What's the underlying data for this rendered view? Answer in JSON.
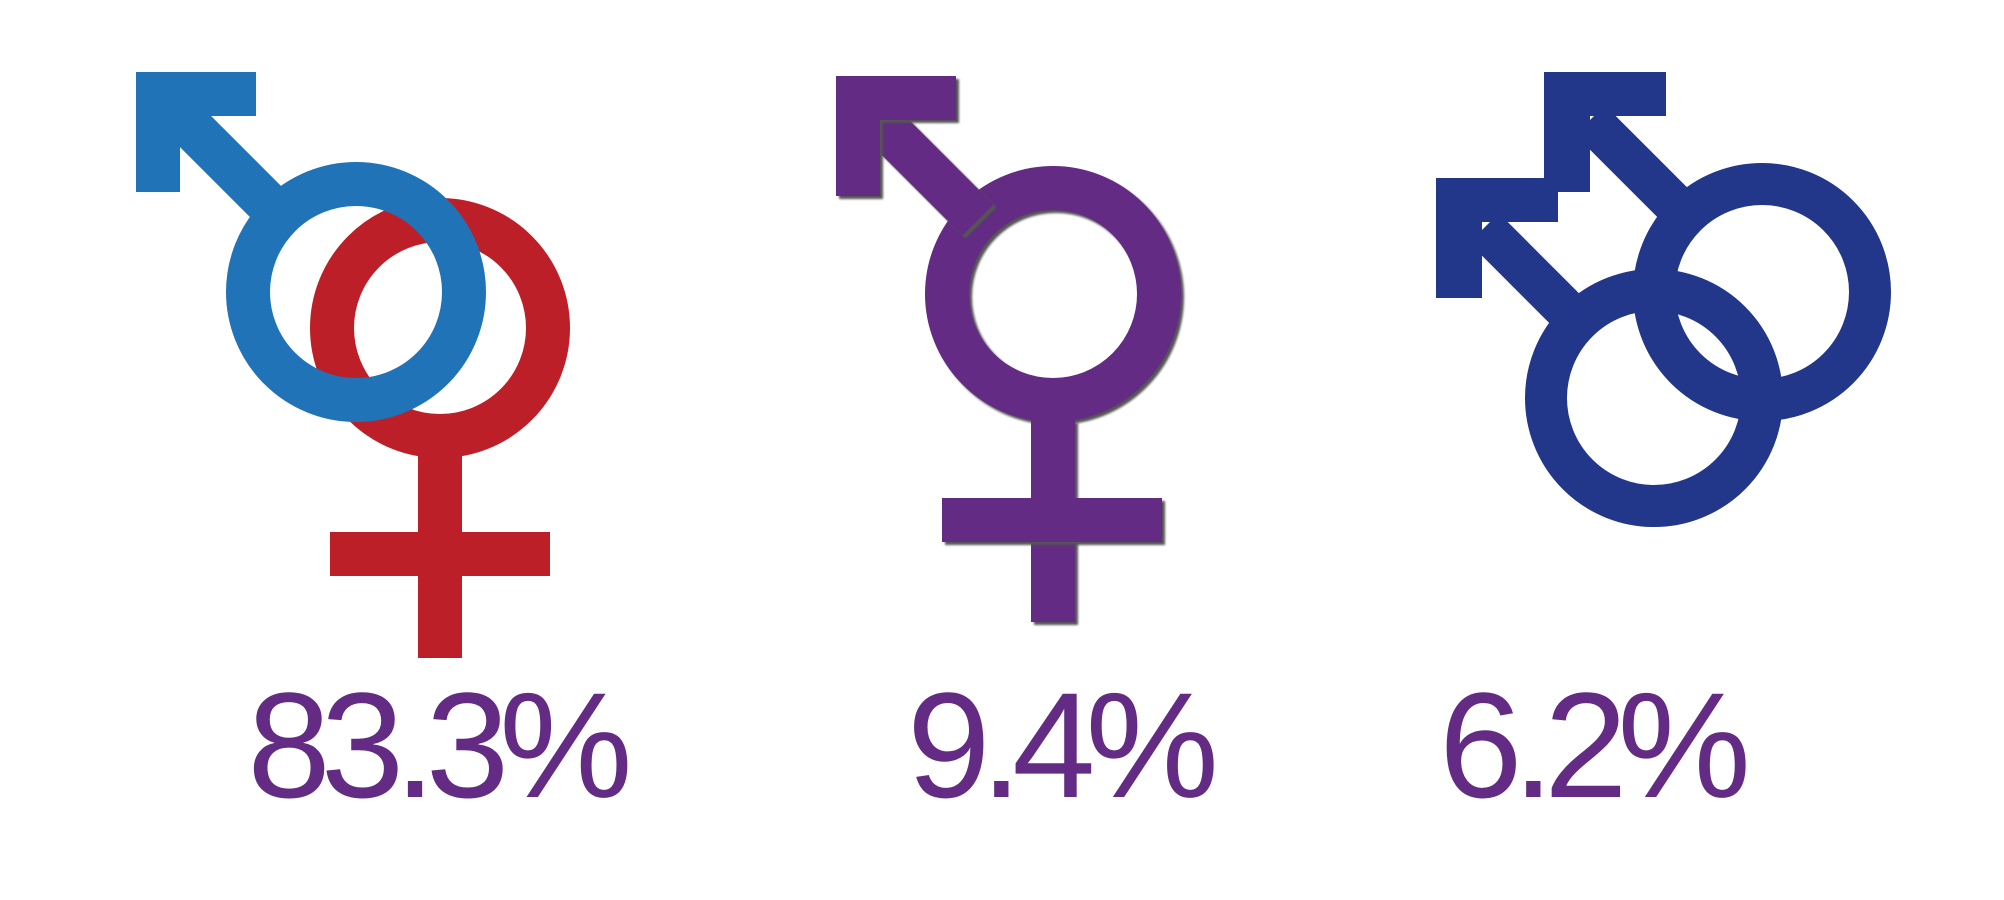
{
  "colors": {
    "male_blue": "#2173b8",
    "female_red": "#bd1f29",
    "purple": "#632b84",
    "navy": "#22368a",
    "text_purple": "#632b84",
    "background": "#ffffff"
  },
  "items": [
    {
      "icon": "male-female-heterosexual-icon",
      "percent": "83.3%",
      "value": 83.3
    },
    {
      "icon": "transgender-male-female-icon",
      "percent": "9.4%",
      "value": 9.4
    },
    {
      "icon": "male-male-homosexual-icon",
      "percent": "6.2%",
      "value": 6.2
    }
  ]
}
